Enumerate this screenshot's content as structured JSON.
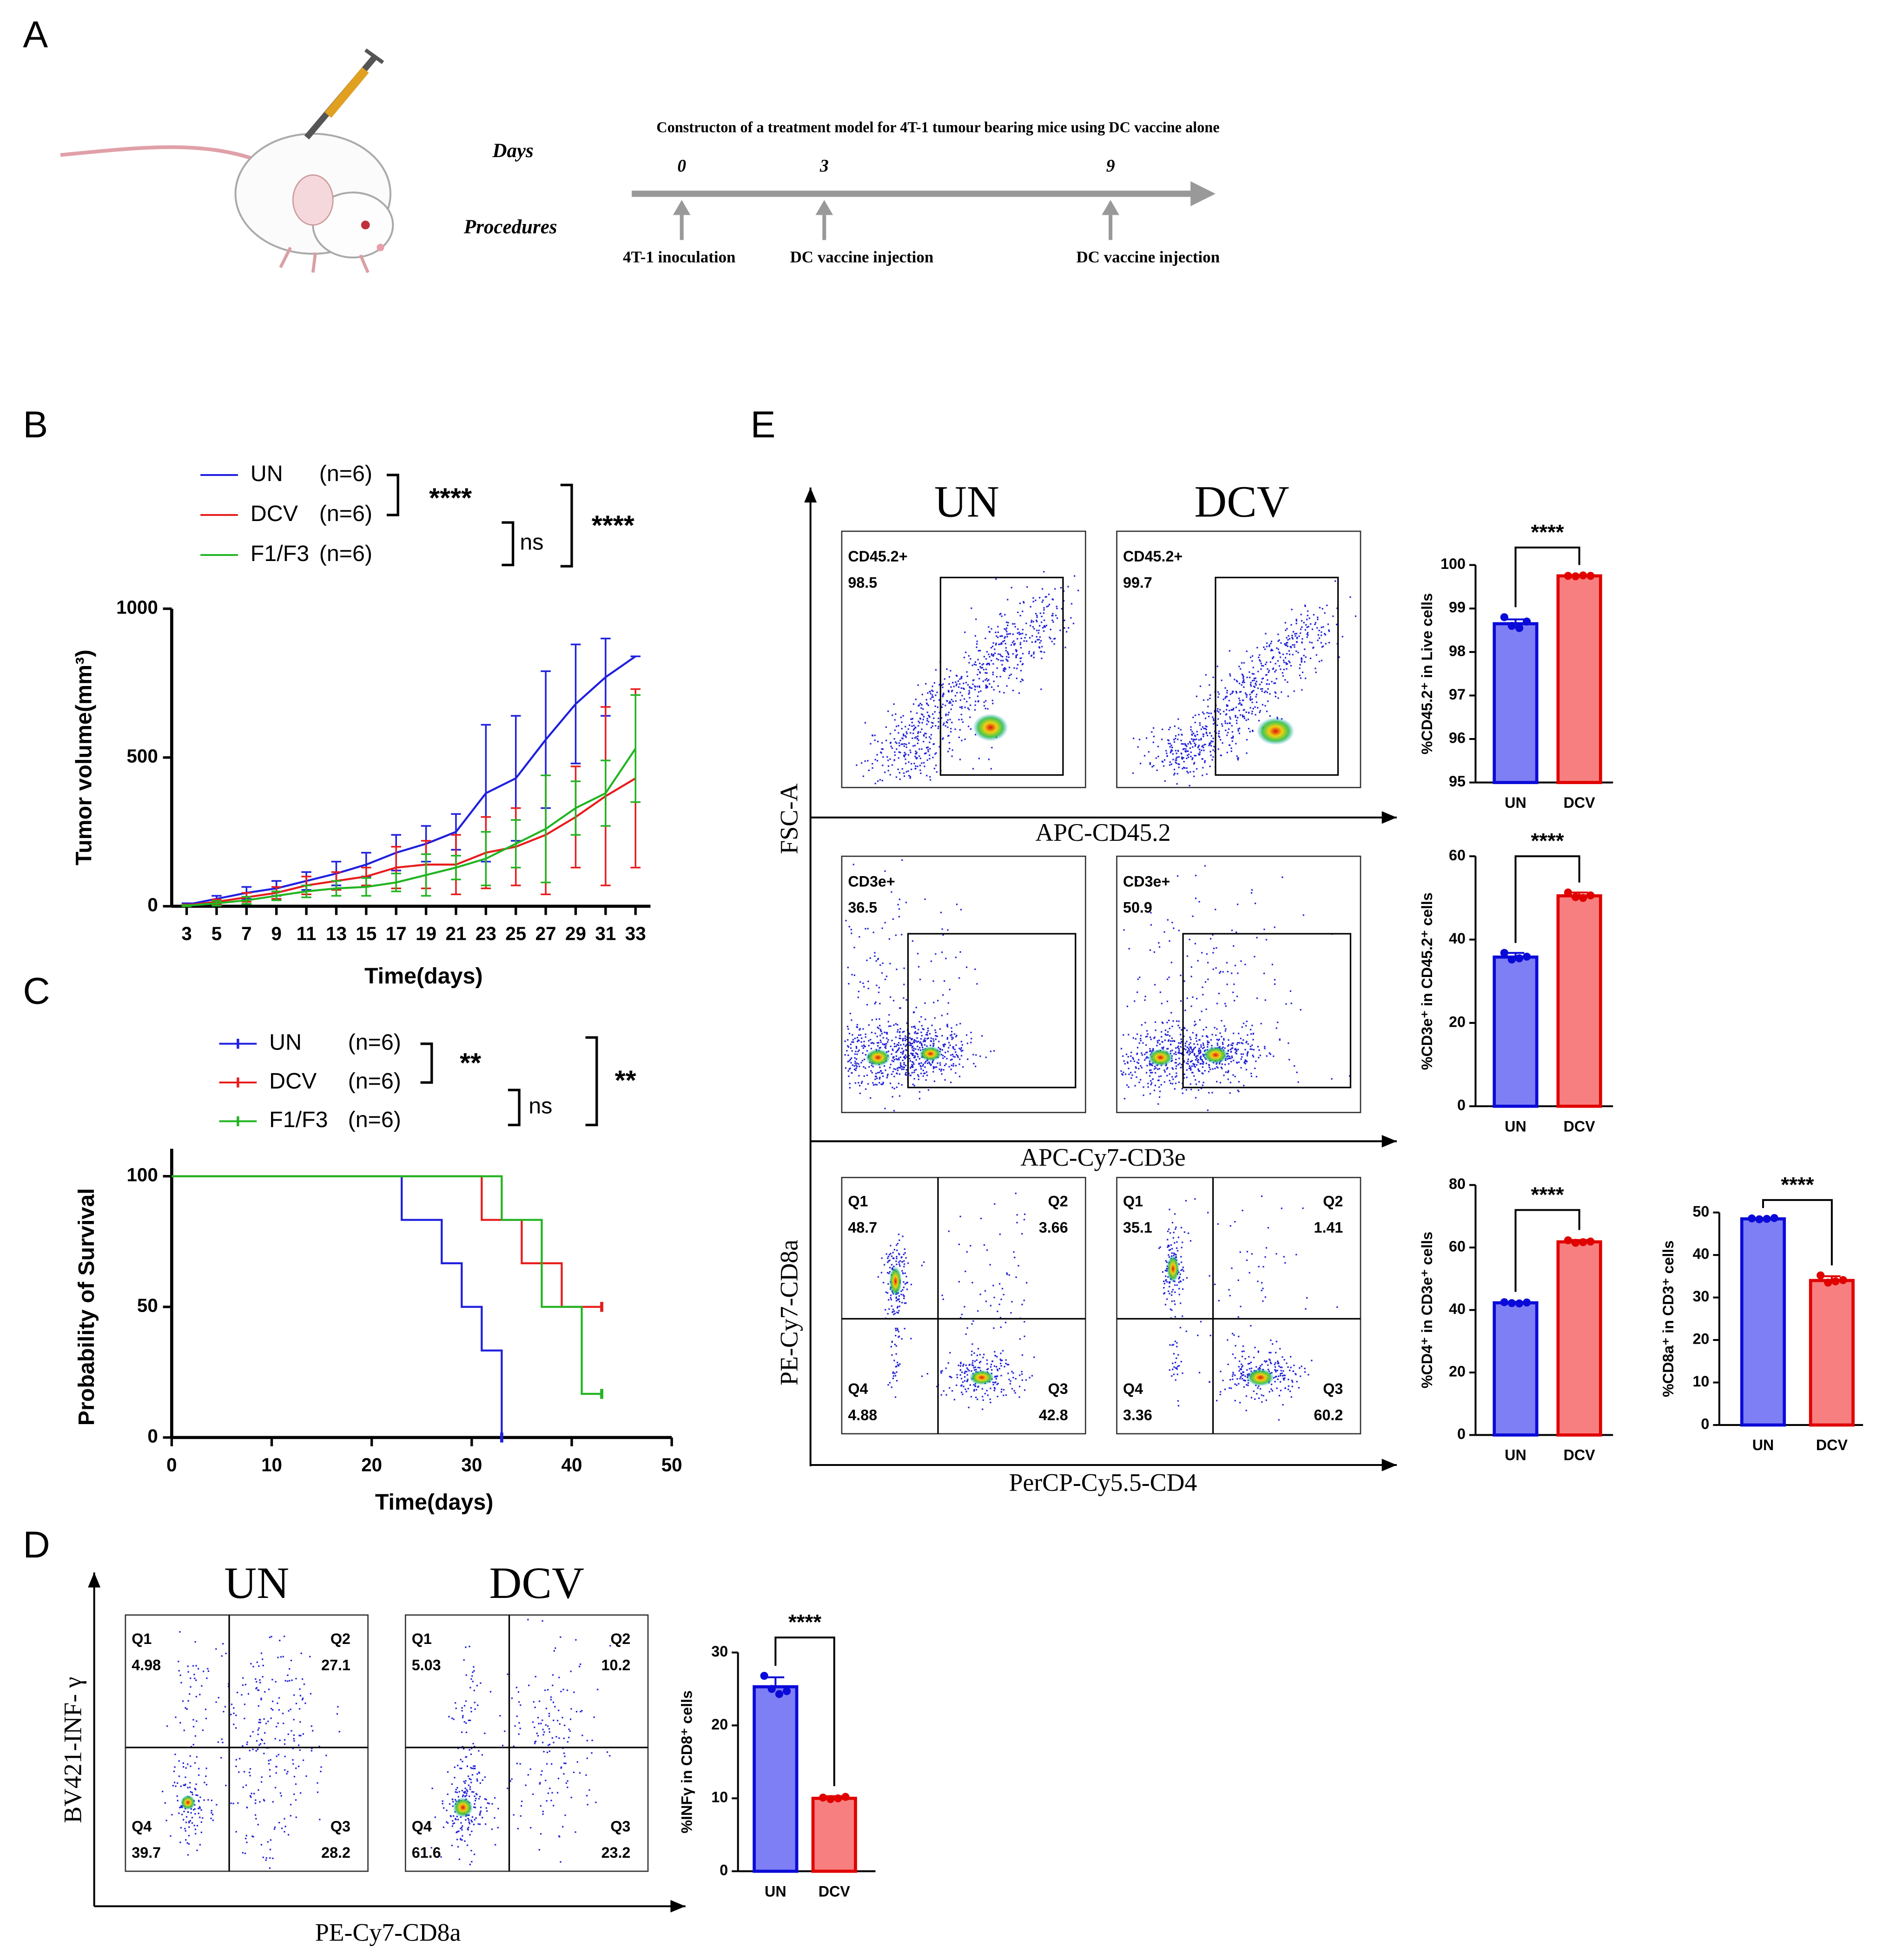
{
  "panel_labels": [
    "A",
    "B",
    "C",
    "D",
    "E"
  ],
  "schematic": {
    "title": "Constructon of a treatment model for 4T-1 tumour bearing mice using DC vaccine alone",
    "row_labels": [
      "Days",
      "Procedures"
    ],
    "days": [
      "0",
      "3",
      "9"
    ],
    "procedures": [
      "4T-1 inoculation",
      "DC vaccine injection",
      "DC vaccine injection"
    ]
  },
  "chart_data": [
    {
      "type": "line",
      "xlabel": "Time(days)",
      "ylabel": "Tumor volume(mm³)",
      "x": [
        3,
        5,
        7,
        9,
        11,
        13,
        15,
        17,
        19,
        21,
        23,
        25,
        27,
        29,
        31,
        33
      ],
      "xlim": [
        2,
        34
      ],
      "xticks": [
        3,
        5,
        7,
        9,
        11,
        13,
        15,
        17,
        19,
        21,
        23,
        25,
        27,
        29,
        31,
        33
      ],
      "ylim": [
        0,
        1000
      ],
      "yticks": [
        0,
        500,
        1000
      ],
      "series": [
        {
          "name": "UN",
          "n_label": "(n=6)",
          "color": "#1f1fe0",
          "values": [
            5,
            25,
            45,
            60,
            85,
            110,
            140,
            180,
            210,
            250,
            380,
            430,
            560,
            680,
            770,
            840
          ],
          "errors": [
            5,
            10,
            20,
            25,
            30,
            40,
            40,
            60,
            60,
            60,
            230,
            210,
            230,
            200,
            130,
            0
          ]
        },
        {
          "name": "DCV",
          "n_label": "(n=6)",
          "color": "#e81c1c",
          "values": [
            3,
            15,
            30,
            45,
            70,
            85,
            100,
            130,
            140,
            140,
            180,
            200,
            240,
            300,
            370,
            430
          ],
          "errors": [
            3,
            8,
            15,
            20,
            30,
            30,
            30,
            70,
            80,
            100,
            120,
            130,
            200,
            170,
            300,
            300
          ]
        },
        {
          "name": "F1/F3",
          "n_label": "(n=6)",
          "color": "#22b422",
          "values": [
            2,
            10,
            20,
            35,
            50,
            60,
            65,
            80,
            105,
            130,
            160,
            210,
            260,
            330,
            380,
            530
          ],
          "errors": [
            2,
            8,
            12,
            15,
            20,
            25,
            30,
            30,
            70,
            40,
            90,
            80,
            180,
            90,
            110,
            180
          ]
        }
      ],
      "annotations": [
        "****",
        "ns",
        "****"
      ]
    },
    {
      "type": "step",
      "xlabel": "Time(days)",
      "ylabel": "Probability of Survival",
      "xlim": [
        0,
        50
      ],
      "xticks": [
        0,
        10,
        20,
        30,
        40,
        50
      ],
      "ylim": [
        0,
        100
      ],
      "yticks": [
        0,
        50,
        100
      ],
      "series": [
        {
          "name": "UN",
          "n_label": "(n=6)",
          "color": "#1f1fe0",
          "x": [
            0,
            23,
            27,
            29,
            31,
            33
          ],
          "values": [
            100,
            83.3,
            66.7,
            50,
            33.3,
            0
          ]
        },
        {
          "name": "DCV",
          "n_label": "(n=6)",
          "color": "#e81c1c",
          "x": [
            0,
            31,
            35,
            39,
            43
          ],
          "values": [
            100,
            83.3,
            66.7,
            50,
            50
          ]
        },
        {
          "name": "F1/F3",
          "n_label": "(n=6)",
          "color": "#22b422",
          "x": [
            0,
            33,
            37,
            41,
            43
          ],
          "values": [
            100,
            83.3,
            50,
            16.7,
            16.7
          ]
        }
      ],
      "annotations": [
        "**",
        "ns",
        "**"
      ]
    },
    {
      "type": "bar",
      "ylabel": "%INFγ in CD8⁺ cells",
      "categories": [
        "UN",
        "DCV"
      ],
      "values": [
        25.3,
        10
      ],
      "errors": [
        1.3,
        0.3
      ],
      "points": [
        [
          26.8,
          25,
          24.3,
          24.7
        ],
        [
          10.1,
          9.9,
          10,
          10.2
        ]
      ],
      "colors": [
        "#7f7ff5",
        "#f87f7f"
      ],
      "edge_colors": [
        "#0a0ad8",
        "#e00000"
      ],
      "ylim": [
        0,
        30
      ],
      "yticks": [
        0,
        10,
        20,
        30
      ],
      "annotation": "****"
    },
    {
      "type": "bar",
      "ylabel": "%CD45.2⁺ in Live cells",
      "categories": [
        "UN",
        "DCV"
      ],
      "values": [
        98.65,
        99.75
      ],
      "errors": [
        0.1,
        0.02
      ],
      "points": [
        [
          98.8,
          98.6,
          98.55,
          98.7
        ],
        [
          99.75,
          99.74,
          99.76,
          99.75
        ]
      ],
      "colors": [
        "#7f7ff5",
        "#f87f7f"
      ],
      "edge_colors": [
        "#0a0ad8",
        "#e00000"
      ],
      "ylim": [
        95,
        100
      ],
      "yticks": [
        95,
        96,
        97,
        98,
        99,
        100
      ],
      "annotation": "****"
    },
    {
      "type": "bar",
      "ylabel": "%CD3e⁺ in CD45.2⁺ cells",
      "categories": [
        "UN",
        "DCV"
      ],
      "values": [
        35.8,
        50.5
      ],
      "errors": [
        1,
        0.8
      ],
      "points": [
        [
          36.8,
          35.2,
          35.5,
          35.9
        ],
        [
          51.3,
          50.2,
          50,
          50.6
        ]
      ],
      "colors": [
        "#7f7ff5",
        "#f87f7f"
      ],
      "edge_colors": [
        "#0a0ad8",
        "#e00000"
      ],
      "ylim": [
        0,
        60
      ],
      "yticks": [
        0,
        20,
        40,
        60
      ],
      "annotation": "****"
    },
    {
      "type": "bar",
      "ylabel": "%CD4⁺ in CD3e⁺ cells",
      "categories": [
        "UN",
        "DCV"
      ],
      "values": [
        42.3,
        61.8
      ],
      "errors": [
        0.3,
        0.6
      ],
      "points": [
        [
          42.5,
          42.2,
          42.1,
          42.4
        ],
        [
          62.3,
          61.5,
          61.7,
          61.9
        ]
      ],
      "colors": [
        "#7f7ff5",
        "#f87f7f"
      ],
      "edge_colors": [
        "#0a0ad8",
        "#e00000"
      ],
      "ylim": [
        0,
        80
      ],
      "yticks": [
        0,
        20,
        40,
        60,
        80
      ],
      "annotation": "****"
    },
    {
      "type": "bar",
      "ylabel": "%CD8a⁺ in CD3⁺ cells",
      "categories": [
        "UN",
        "DCV"
      ],
      "values": [
        48.5,
        34
      ],
      "errors": [
        0.2,
        1
      ],
      "points": [
        [
          48.6,
          48.4,
          48.5,
          48.7
        ],
        [
          35.2,
          33.5,
          33.8,
          34.1
        ]
      ],
      "colors": [
        "#7f7ff5",
        "#f87f7f"
      ],
      "edge_colors": [
        "#0a0ad8",
        "#e00000"
      ],
      "ylim": [
        0,
        50
      ],
      "yticks": [
        0,
        10,
        20,
        30,
        40,
        50
      ],
      "annotation": "****"
    }
  ],
  "flow": {
    "D": {
      "headers": [
        "UN",
        "DCV"
      ],
      "y_axis": "BV421-INF- γ",
      "x_axis": "PE-Cy7-CD8a",
      "plots": [
        [
          {
            "name": "Q1",
            "value": 4.98
          },
          {
            "name": "Q2",
            "value": 27.1
          },
          {
            "name": "Q3",
            "value": 28.2
          },
          {
            "name": "Q4",
            "value": 39.7
          }
        ],
        [
          {
            "name": "Q1",
            "value": 5.03
          },
          {
            "name": "Q2",
            "value": 10.2
          },
          {
            "name": "Q3",
            "value": 23.2
          },
          {
            "name": "Q4",
            "value": 61.6
          }
        ]
      ]
    },
    "E": {
      "headers": [
        "UN",
        "DCV"
      ],
      "y_axis": [
        "FSC-A",
        "PE-Cy7-CD8a"
      ],
      "x_axis": [
        "APC-CD45.2",
        "APC-Cy7-CD3e",
        "PerCP-Cy5.5-CD4"
      ],
      "gates": [
        {
          "name": "CD45.2+",
          "values": [
            98.5,
            99.7
          ]
        },
        {
          "name": "CD3e+",
          "values": [
            36.5,
            50.9
          ]
        }
      ],
      "quadrants": [
        [
          {
            "name": "Q1",
            "value": 48.7
          },
          {
            "name": "Q2",
            "value": 3.66
          },
          {
            "name": "Q3",
            "value": 42.8
          },
          {
            "name": "Q4",
            "value": 4.88
          }
        ],
        [
          {
            "name": "Q1",
            "value": 35.1
          },
          {
            "name": "Q2",
            "value": 1.41
          },
          {
            "name": "Q3",
            "value": 60.2
          },
          {
            "name": "Q4",
            "value": 3.36
          }
        ]
      ]
    }
  }
}
